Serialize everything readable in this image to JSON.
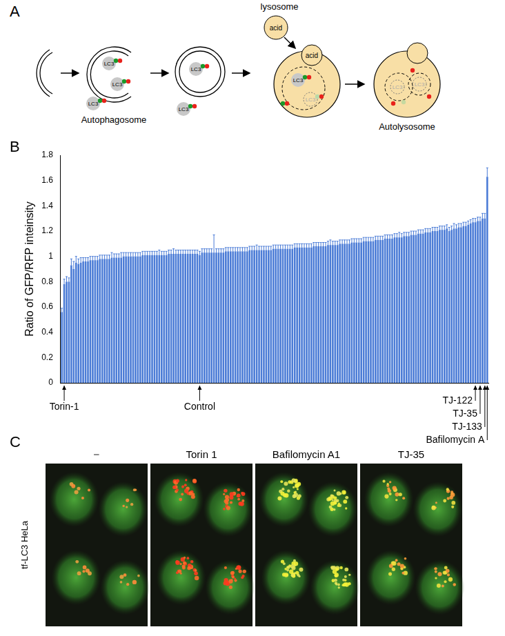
{
  "panel_labels": [
    "A",
    "B",
    "C"
  ],
  "diagram": {
    "lysosome": "lysosome",
    "acid": "acid",
    "protein": "LC3",
    "stages": [
      "Autophagosome",
      "Autolysosome"
    ]
  },
  "chart_data": {
    "type": "bar",
    "y_label": "Ratio of GFP/RFP inteinsity",
    "color": "#4a7bd6",
    "grid": false,
    "ylim": [
      0,
      1.8
    ],
    "yticks": [
      0,
      0.2,
      0.4,
      0.6,
      0.8,
      1,
      1.2,
      1.4,
      1.6,
      1.8
    ],
    "categories": [
      null,
      "Torin-1",
      null,
      null,
      null,
      null,
      null,
      null,
      null,
      null,
      null,
      null,
      null,
      null,
      null,
      null,
      null,
      null,
      null,
      null,
      null,
      null,
      null,
      null,
      null,
      null,
      null,
      null,
      null,
      null,
      null,
      null,
      null,
      null,
      null,
      null,
      null,
      null,
      null,
      null,
      null,
      null,
      null,
      null,
      null,
      null,
      null,
      null,
      null,
      null,
      null,
      null,
      null,
      null,
      null,
      null,
      null,
      null,
      "Control",
      null,
      null,
      null,
      null,
      null,
      null,
      null,
      null,
      null,
      null,
      null,
      null,
      null,
      null,
      null,
      null,
      null,
      null,
      null,
      null,
      null,
      null,
      null,
      null,
      null,
      null,
      null,
      null,
      null,
      null,
      null,
      null,
      null,
      null,
      null,
      null,
      null,
      null,
      null,
      null,
      null,
      null,
      null,
      null,
      null,
      null,
      null,
      null,
      null,
      null,
      null,
      null,
      null,
      null,
      null,
      null,
      null,
      null,
      null,
      null,
      null,
      null,
      null,
      null,
      null,
      null,
      null,
      null,
      null,
      null,
      null,
      null,
      null,
      null,
      null,
      null,
      null,
      null,
      null,
      null,
      null,
      null,
      null,
      null,
      null,
      null,
      null,
      null,
      null,
      null,
      null,
      null,
      null,
      null,
      null,
      null,
      null,
      null,
      null,
      null,
      null,
      null,
      null,
      null,
      null,
      null,
      null,
      null,
      null,
      null,
      null,
      null,
      null,
      null,
      null,
      "TJ-122",
      null,
      "TJ-35",
      null,
      "TJ-133",
      "Bafilomycin A"
    ],
    "values": [
      0.56,
      0.78,
      0.8,
      0.8,
      0.93,
      0.9,
      0.95,
      0.94,
      0.95,
      0.96,
      0.96,
      0.96,
      0.97,
      0.97,
      0.97,
      0.97,
      0.98,
      0.98,
      0.98,
      0.98,
      0.98,
      0.99,
      0.99,
      0.99,
      0.99,
      0.99,
      1.0,
      1.0,
      1.0,
      1.0,
      1.0,
      1.0,
      1.0,
      1.0,
      1.01,
      1.01,
      1.01,
      1.01,
      1.01,
      1.01,
      1.01,
      1.01,
      1.01,
      1.01,
      1.01,
      1.02,
      1.02,
      1.02,
      1.02,
      1.02,
      1.02,
      1.02,
      1.02,
      1.02,
      1.02,
      1.02,
      1.02,
      1.02,
      1.01,
      1.03,
      1.03,
      1.03,
      1.03,
      1.03,
      1.03,
      1.03,
      1.03,
      1.03,
      1.03,
      1.04,
      1.04,
      1.04,
      1.04,
      1.04,
      1.04,
      1.04,
      1.04,
      1.04,
      1.04,
      1.05,
      1.05,
      1.05,
      1.05,
      1.05,
      1.05,
      1.05,
      1.05,
      1.05,
      1.05,
      1.06,
      1.06,
      1.06,
      1.06,
      1.06,
      1.06,
      1.06,
      1.06,
      1.06,
      1.07,
      1.07,
      1.07,
      1.07,
      1.07,
      1.07,
      1.07,
      1.07,
      1.08,
      1.08,
      1.08,
      1.08,
      1.08,
      1.08,
      1.09,
      1.09,
      1.09,
      1.09,
      1.09,
      1.1,
      1.1,
      1.1,
      1.1,
      1.1,
      1.11,
      1.11,
      1.11,
      1.11,
      1.11,
      1.12,
      1.12,
      1.12,
      1.12,
      1.12,
      1.13,
      1.13,
      1.13,
      1.13,
      1.14,
      1.14,
      1.14,
      1.14,
      1.15,
      1.15,
      1.15,
      1.15,
      1.16,
      1.16,
      1.16,
      1.17,
      1.17,
      1.17,
      1.18,
      1.18,
      1.18,
      1.19,
      1.19,
      1.19,
      1.2,
      1.2,
      1.2,
      1.21,
      1.21,
      1.21,
      1.22,
      1.2,
      1.21,
      1.22,
      1.22,
      1.23,
      1.23,
      1.24,
      1.24,
      1.25,
      1.26,
      1.27,
      1.27,
      1.28,
      1.28,
      1.3,
      1.3,
      1.63
    ],
    "errors": [
      0.03,
      0.04,
      0.04,
      0.03,
      0.05,
      0.06,
      0.05,
      0.04,
      0.04,
      0.03,
      0.03,
      0.03,
      0.03,
      0.03,
      0.03,
      0.03,
      0.03,
      0.03,
      0.03,
      0.03,
      0.03,
      0.04,
      0.03,
      0.03,
      0.03,
      0.04,
      0.03,
      0.03,
      0.03,
      0.03,
      0.03,
      0.03,
      0.03,
      0.03,
      0.03,
      0.03,
      0.03,
      0.03,
      0.03,
      0.03,
      0.03,
      0.04,
      0.03,
      0.03,
      0.03,
      0.03,
      0.03,
      0.04,
      0.03,
      0.03,
      0.03,
      0.03,
      0.03,
      0.03,
      0.03,
      0.03,
      0.03,
      0.03,
      0.03,
      0.03,
      0.03,
      0.03,
      0.03,
      0.03,
      0.14,
      0.03,
      0.03,
      0.03,
      0.03,
      0.03,
      0.03,
      0.03,
      0.03,
      0.03,
      0.03,
      0.03,
      0.03,
      0.03,
      0.03,
      0.03,
      0.03,
      0.03,
      0.04,
      0.03,
      0.03,
      0.03,
      0.03,
      0.03,
      0.03,
      0.03,
      0.03,
      0.03,
      0.03,
      0.03,
      0.03,
      0.03,
      0.03,
      0.03,
      0.03,
      0.03,
      0.03,
      0.03,
      0.03,
      0.03,
      0.03,
      0.03,
      0.03,
      0.03,
      0.03,
      0.03,
      0.03,
      0.03,
      0.03,
      0.04,
      0.03,
      0.03,
      0.03,
      0.03,
      0.03,
      0.03,
      0.03,
      0.03,
      0.03,
      0.03,
      0.03,
      0.03,
      0.03,
      0.03,
      0.03,
      0.03,
      0.03,
      0.03,
      0.03,
      0.03,
      0.03,
      0.03,
      0.03,
      0.03,
      0.03,
      0.03,
      0.03,
      0.03,
      0.04,
      0.03,
      0.03,
      0.03,
      0.03,
      0.03,
      0.03,
      0.03,
      0.03,
      0.03,
      0.03,
      0.03,
      0.03,
      0.03,
      0.03,
      0.03,
      0.03,
      0.03,
      0.03,
      0.03,
      0.03,
      0.03,
      0.03,
      0.04,
      0.03,
      0.03,
      0.03,
      0.03,
      0.03,
      0.03,
      0.03,
      0.03,
      0.03,
      0.03,
      0.03,
      0.04,
      0.04,
      0.07
    ]
  },
  "images": {
    "row_label": "tf-LC3 HeLa",
    "columns": [
      "−",
      "Torin 1",
      "Bafilomycin A1",
      "TJ-35"
    ]
  }
}
